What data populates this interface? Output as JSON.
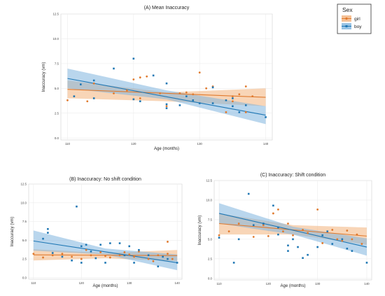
{
  "colors": {
    "girl": "#E07A2E",
    "boy": "#1F77B4",
    "girl_band": "#F2B27C",
    "boy_band": "#7FB5DE",
    "line": "#4A4A4A"
  },
  "legend": {
    "title": "Sex",
    "items": [
      {
        "label": "girl",
        "key": "girl"
      },
      {
        "label": "boy",
        "key": "boy"
      }
    ]
  },
  "chart_data": [
    {
      "type": "scatter",
      "title": "(A) Mean Inaccuracy",
      "xlabel": "Age (months)",
      "ylabel": "Inaccuracy (vm)",
      "xlim": [
        109,
        141
      ],
      "ylim": [
        -0.2,
        12.5
      ],
      "xticks": [
        110,
        120,
        130,
        140
      ],
      "yticks": [
        0.0,
        2.5,
        5.0,
        7.5,
        10.0,
        12.5
      ],
      "ytick_labels": [
        "0.0",
        "2.5",
        "5.0",
        "7.5",
        "10.0",
        "12.5"
      ],
      "grid": true,
      "series": [
        {
          "name": "girl",
          "points": [
            [
              110,
              3.8
            ],
            [
              113,
              3.7
            ],
            [
              114,
              5.5
            ],
            [
              117,
              4.5
            ],
            [
              119,
              4.8
            ],
            [
              120,
              5.9
            ],
            [
              121,
              6.1
            ],
            [
              121,
              4.0
            ],
            [
              122,
              6.2
            ],
            [
              124,
              4.5
            ],
            [
              125,
              3.2
            ],
            [
              127,
              4.5
            ],
            [
              128,
              4.6
            ],
            [
              129,
              4.4
            ],
            [
              130,
              6.6
            ],
            [
              131,
              5.0
            ],
            [
              132,
              5.2
            ],
            [
              134,
              2.6
            ],
            [
              135,
              4.2
            ],
            [
              135,
              3.7
            ],
            [
              136,
              4.4
            ],
            [
              137,
              5.2
            ],
            [
              137,
              2.6
            ],
            [
              138,
              4.2
            ]
          ],
          "fit": {
            "x": [
              110,
              140
            ],
            "y": [
              4.9,
              4.1
            ]
          },
          "band": {
            "x": [
              110,
              125,
              140
            ],
            "lower": [
              4.0,
              3.7,
              3.2
            ],
            "upper": [
              5.8,
              4.6,
              5.0
            ]
          }
        },
        {
          "name": "boy",
          "points": [
            [
              111,
              4.2
            ],
            [
              112,
              5.4
            ],
            [
              114,
              5.8
            ],
            [
              114,
              4.0
            ],
            [
              117,
              7.0
            ],
            [
              120,
              8.0
            ],
            [
              120,
              3.9
            ],
            [
              121,
              3.7
            ],
            [
              123,
              6.3
            ],
            [
              125,
              3.4
            ],
            [
              125,
              3.0
            ],
            [
              125,
              5.5
            ],
            [
              127,
              3.3
            ],
            [
              128,
              4.2
            ],
            [
              129,
              3.8
            ],
            [
              130,
              3.5
            ],
            [
              132,
              5.1
            ],
            [
              132,
              3.5
            ],
            [
              134,
              3.8
            ],
            [
              135,
              4.0
            ],
            [
              135,
              3.2
            ],
            [
              136,
              2.6
            ],
            [
              137,
              3.3
            ],
            [
              140,
              2.1
            ]
          ],
          "fit": {
            "x": [
              110,
              140
            ],
            "y": [
              6.0,
              2.3
            ]
          },
          "band": {
            "x": [
              110,
              125,
              140
            ],
            "lower": [
              5.0,
              3.9,
              1.4
            ],
            "upper": [
              7.0,
              4.8,
              3.2
            ]
          }
        }
      ]
    },
    {
      "type": "scatter",
      "title": "(B) Inaccuracy: No shift condition",
      "xlabel": "Age (months)",
      "ylabel": "Inaccuracy (vm)",
      "xlim": [
        109,
        141
      ],
      "ylim": [
        -0.2,
        12.5
      ],
      "xticks": [
        110,
        120,
        130,
        140
      ],
      "yticks": [
        0.0,
        2.5,
        5.0,
        7.5,
        10.0,
        12.5
      ],
      "ytick_labels": [
        "0.0",
        "2.5",
        "5.0",
        "7.5",
        "10.0",
        "12.5"
      ],
      "grid": true,
      "series": [
        {
          "name": "girl",
          "points": [
            [
              110,
              3.2
            ],
            [
              112,
              2.7
            ],
            [
              114,
              3.0
            ],
            [
              116,
              3.2
            ],
            [
              118,
              2.8
            ],
            [
              120,
              2.5
            ],
            [
              121,
              3.7
            ],
            [
              122,
              3.0
            ],
            [
              124,
              3.4
            ],
            [
              125,
              2.9
            ],
            [
              126,
              2.7
            ],
            [
              128,
              3.0
            ],
            [
              129,
              3.4
            ],
            [
              130,
              3.1
            ],
            [
              131,
              2.8
            ],
            [
              132,
              3.5
            ],
            [
              134,
              2.5
            ],
            [
              135,
              2.2
            ],
            [
              136,
              3.0
            ],
            [
              138,
              3.2
            ],
            [
              138,
              4.8
            ],
            [
              139,
              2.5
            ]
          ],
          "fit": {
            "x": [
              110,
              140
            ],
            "y": [
              3.05,
              2.95
            ]
          },
          "band": {
            "x": [
              110,
              125,
              140
            ],
            "lower": [
              2.3,
              2.6,
              2.2
            ],
            "upper": [
              3.8,
              3.3,
              3.7
            ]
          }
        },
        {
          "name": "boy",
          "points": [
            [
              112,
              5.2
            ],
            [
              113,
              6.5
            ],
            [
              113,
              6.0
            ],
            [
              114,
              3.3
            ],
            [
              116,
              2.8
            ],
            [
              118,
              2.3
            ],
            [
              119,
              9.5
            ],
            [
              120,
              2.0
            ],
            [
              120,
              4.2
            ],
            [
              121,
              4.4
            ],
            [
              122,
              3.5
            ],
            [
              123,
              2.6
            ],
            [
              124,
              4.4
            ],
            [
              125,
              2.0
            ],
            [
              126,
              4.6
            ],
            [
              128,
              4.6
            ],
            [
              129,
              3.0
            ],
            [
              130,
              4.2
            ],
            [
              131,
              2.0
            ],
            [
              132,
              3.7
            ],
            [
              134,
              3.0
            ],
            [
              136,
              1.5
            ],
            [
              137,
              2.8
            ],
            [
              138,
              2.5
            ],
            [
              140,
              2.0
            ]
          ],
          "fit": {
            "x": [
              110,
              140
            ],
            "y": [
              4.9,
              2.0
            ]
          },
          "band": {
            "x": [
              110,
              125,
              140
            ],
            "lower": [
              3.6,
              3.1,
              1.0
            ],
            "upper": [
              6.3,
              3.9,
              3.1
            ]
          }
        }
      ]
    },
    {
      "type": "scatter",
      "title": "(C) Inaccuracy: Shift condition",
      "xlabel": "Age (months)",
      "ylabel": "Inaccuracy (vm)",
      "xlim": [
        109,
        141
      ],
      "ylim": [
        -0.2,
        12.5
      ],
      "xticks": [
        110,
        120,
        130,
        140
      ],
      "yticks": [
        0.0,
        2.5,
        5.0,
        7.5,
        10.0,
        12.5
      ],
      "ytick_labels": [
        "0.0",
        "2.5",
        "5.0",
        "7.5",
        "10.0",
        "12.5"
      ],
      "grid": true,
      "series": [
        {
          "name": "girl",
          "points": [
            [
              110,
              5.5
            ],
            [
              112,
              6.0
            ],
            [
              114,
              7.0
            ],
            [
              117,
              5.3
            ],
            [
              119,
              6.8
            ],
            [
              120,
              5.4
            ],
            [
              121,
              8.3
            ],
            [
              122,
              8.8
            ],
            [
              123,
              6.0
            ],
            [
              124,
              7.0
            ],
            [
              125,
              5.5
            ],
            [
              127,
              6.2
            ],
            [
              128,
              5.8
            ],
            [
              130,
              8.8
            ],
            [
              131,
              4.5
            ],
            [
              133,
              6.2
            ],
            [
              134,
              5.0
            ],
            [
              135,
              4.8
            ],
            [
              136,
              6.1
            ],
            [
              137,
              5.0
            ],
            [
              138,
              5.6
            ],
            [
              139,
              4.4
            ]
          ],
          "fit": {
            "x": [
              110,
              140
            ],
            "y": [
              7.0,
              5.4
            ]
          },
          "band": {
            "x": [
              110,
              125,
              140
            ],
            "lower": [
              5.6,
              5.6,
              4.3
            ],
            "upper": [
              8.3,
              6.8,
              6.5
            ]
          }
        },
        {
          "name": "boy",
          "points": [
            [
              110,
              5.2
            ],
            [
              113,
              2.0
            ],
            [
              114,
              5.0
            ],
            [
              116,
              10.8
            ],
            [
              117,
              6.8
            ],
            [
              119,
              7.0
            ],
            [
              121,
              9.3
            ],
            [
              122,
              5.6
            ],
            [
              122,
              6.5
            ],
            [
              124,
              3.5
            ],
            [
              124,
              4.2
            ],
            [
              125,
              5.0
            ],
            [
              126,
              4.0
            ],
            [
              127,
              2.6
            ],
            [
              128,
              3.0
            ],
            [
              130,
              4.0
            ],
            [
              131,
              5.5
            ],
            [
              132,
              6.0
            ],
            [
              133,
              4.4
            ],
            [
              135,
              5.0
            ],
            [
              136,
              3.8
            ],
            [
              137,
              3.5
            ],
            [
              140,
              2.0
            ]
          ],
          "fit": {
            "x": [
              110,
              140
            ],
            "y": [
              8.3,
              4.0
            ]
          },
          "band": {
            "x": [
              110,
              125,
              140
            ],
            "lower": [
              7.0,
              5.6,
              2.9
            ],
            "upper": [
              9.6,
              6.6,
              5.1
            ]
          }
        }
      ]
    }
  ]
}
